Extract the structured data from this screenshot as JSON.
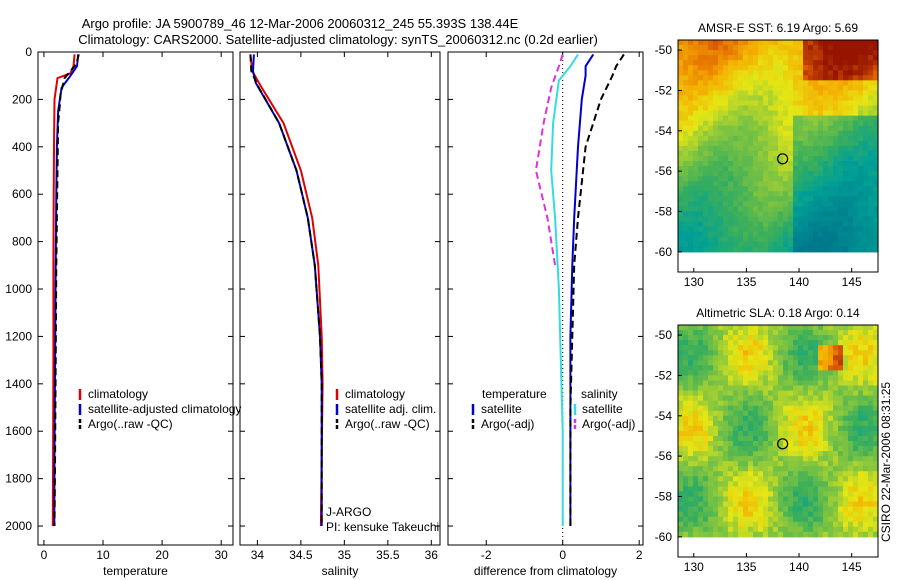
{
  "figure": {
    "title_line1": "Argo profile: JA 5900789_46 12-Mar-2006 20060312_245 55.393S 138.44E",
    "title_line2": "Climatology: CARS2000. Satellite-adjusted climatology: synTS_20060312.nc (0.2d earlier)",
    "side_stamp": "CSIRO 22-Mar-2006 08:31:25"
  },
  "colors": {
    "red": "#e00000",
    "blue": "#0000cc",
    "black": "#000000",
    "cyan": "#33dddd",
    "magenta": "#dd33dd"
  },
  "chart_data": [
    {
      "id": "temperature",
      "type": "line",
      "xlabel": "temperature",
      "xlim": [
        -1,
        32
      ],
      "ylim": [
        2080,
        0
      ],
      "xticks": [
        0,
        10,
        20,
        30
      ],
      "yticks": [
        0,
        200,
        400,
        600,
        800,
        1000,
        1200,
        1400,
        1600,
        1800,
        2000
      ],
      "legend": [
        "climatology",
        "satellite-adjusted climatology",
        "Argo(..raw -QC)"
      ],
      "series": [
        {
          "name": "climatology",
          "color": "red",
          "dash": "solid",
          "x": [
            5.2,
            5.0,
            4.5,
            2.3,
            1.8,
            1.7,
            1.65,
            1.6,
            1.6,
            1.55,
            1.5
          ],
          "y": [
            10,
            60,
            90,
            110,
            200,
            400,
            600,
            900,
            1300,
            1700,
            2000
          ]
        },
        {
          "name": "satellite-adjusted climatology",
          "color": "blue",
          "dash": "solid",
          "x": [
            5.8,
            5.6,
            4.5,
            3.0,
            2.4,
            2.2,
            2.1,
            2.0,
            1.9,
            1.8,
            1.75
          ],
          "y": [
            10,
            60,
            100,
            150,
            250,
            400,
            600,
            900,
            1300,
            1700,
            2000
          ]
        },
        {
          "name": "Argo(..raw -QC)",
          "color": "black",
          "dash": "dash",
          "x": [
            5.9,
            5.5,
            3.5,
            2.8,
            2.7,
            2.4,
            2.3,
            2.1,
            2.0,
            1.9,
            1.8
          ],
          "y": [
            10,
            50,
            110,
            180,
            220,
            300,
            500,
            900,
            1300,
            1700,
            2000
          ]
        }
      ]
    },
    {
      "id": "salinity",
      "type": "line",
      "xlabel": "salinity",
      "xlim": [
        33.8,
        36.1
      ],
      "ylim": [
        2080,
        0
      ],
      "xticks": [
        34,
        34.5,
        35,
        35.5,
        36
      ],
      "legend": [
        "climatology",
        "satellite adj. clim.",
        "Argo(..raw -QC)"
      ],
      "series": [
        {
          "name": "climatology",
          "color": "red",
          "dash": "solid",
          "x": [
            33.92,
            33.94,
            34.05,
            34.3,
            34.5,
            34.63,
            34.7,
            34.74,
            34.75,
            34.74,
            34.73
          ],
          "y": [
            10,
            80,
            150,
            300,
            500,
            700,
            900,
            1200,
            1400,
            1700,
            2000
          ]
        },
        {
          "name": "satellite adj. clim.",
          "color": "blue",
          "dash": "solid",
          "x": [
            33.96,
            33.95,
            33.98,
            34.25,
            34.45,
            34.58,
            34.66,
            34.72,
            34.74,
            34.74,
            34.74
          ],
          "y": [
            10,
            80,
            130,
            300,
            500,
            700,
            900,
            1200,
            1400,
            1700,
            2000
          ]
        },
        {
          "name": "Argo(..raw -QC)",
          "color": "black",
          "dash": "dash",
          "x": [
            33.92,
            33.93,
            34.0,
            34.25,
            34.45,
            34.58,
            34.66,
            34.72,
            34.74,
            34.74,
            34.74
          ],
          "y": [
            10,
            80,
            140,
            300,
            500,
            700,
            900,
            1200,
            1400,
            1700,
            2000
          ]
        }
      ],
      "annotation": [
        "J-ARGO",
        "PI: kensuke Takeuchi"
      ]
    },
    {
      "id": "difference",
      "type": "line",
      "xlabel": "difference from climatology",
      "xlim": [
        -3,
        2.1
      ],
      "ylim": [
        2080,
        0
      ],
      "xticks": [
        -2,
        0,
        2
      ],
      "legend_left_title": "temperature",
      "legend_left": [
        "satellite",
        "Argo(-adj)"
      ],
      "legend_right_title": "salinity",
      "legend_right": [
        "satellite",
        "Argo(-adj)"
      ],
      "series": [
        {
          "name": "temperature satellite",
          "color": "blue",
          "dash": "solid",
          "x": [
            0.8,
            0.6,
            0.6,
            0.5,
            0.4,
            0.3,
            0.25,
            0.2,
            0.2,
            0.2,
            0.2
          ],
          "y": [
            10,
            60,
            100,
            200,
            400,
            700,
            900,
            1200,
            1500,
            1800,
            2000
          ]
        },
        {
          "name": "temperature Argo(-adj)",
          "color": "black",
          "dash": "dash",
          "x": [
            1.6,
            1.4,
            1.3,
            1.0,
            0.6,
            0.4,
            0.3,
            0.25,
            0.2,
            0.2,
            0.2
          ],
          "y": [
            10,
            60,
            100,
            200,
            400,
            700,
            900,
            1200,
            1500,
            1800,
            2000
          ]
        },
        {
          "name": "salinity satellite",
          "color": "cyan",
          "dash": "solid",
          "x": [
            0.4,
            0.2,
            -0.1,
            -0.25,
            -0.3,
            -0.2,
            -0.1,
            -0.05,
            0,
            0,
            0
          ],
          "y": [
            10,
            60,
            120,
            300,
            500,
            700,
            1000,
            1300,
            1600,
            1800,
            2000
          ]
        },
        {
          "name": "salinity Argo(-adj)",
          "color": "magenta",
          "dash": "dash",
          "x": [
            0,
            -0.1,
            -0.3,
            -0.5,
            -0.7,
            -0.4,
            -0.2
          ],
          "y": [
            10,
            60,
            150,
            300,
            500,
            700,
            900
          ]
        }
      ]
    },
    {
      "id": "sst_map",
      "type": "heatmap",
      "title": "AMSR-E SST: 6.19 Argo: 5.69",
      "xlim": [
        128.5,
        147.5
      ],
      "ylim": [
        -61,
        -49.5
      ],
      "xticks": [
        130,
        135,
        140,
        145
      ],
      "yticks": [
        -50,
        -52,
        -54,
        -56,
        -58,
        -60
      ],
      "marker": {
        "lon": 138.44,
        "lat": -55.39
      }
    },
    {
      "id": "sla_map",
      "type": "heatmap",
      "title": "Altimetric SLA: 0.18 Argo: 0.14",
      "xlim": [
        128.5,
        147.5
      ],
      "ylim": [
        -61,
        -49.5
      ],
      "xticks": [
        130,
        135,
        140,
        145
      ],
      "yticks": [
        -50,
        -52,
        -54,
        -56,
        -58,
        -60
      ],
      "marker": {
        "lon": 138.44,
        "lat": -55.39
      }
    }
  ]
}
